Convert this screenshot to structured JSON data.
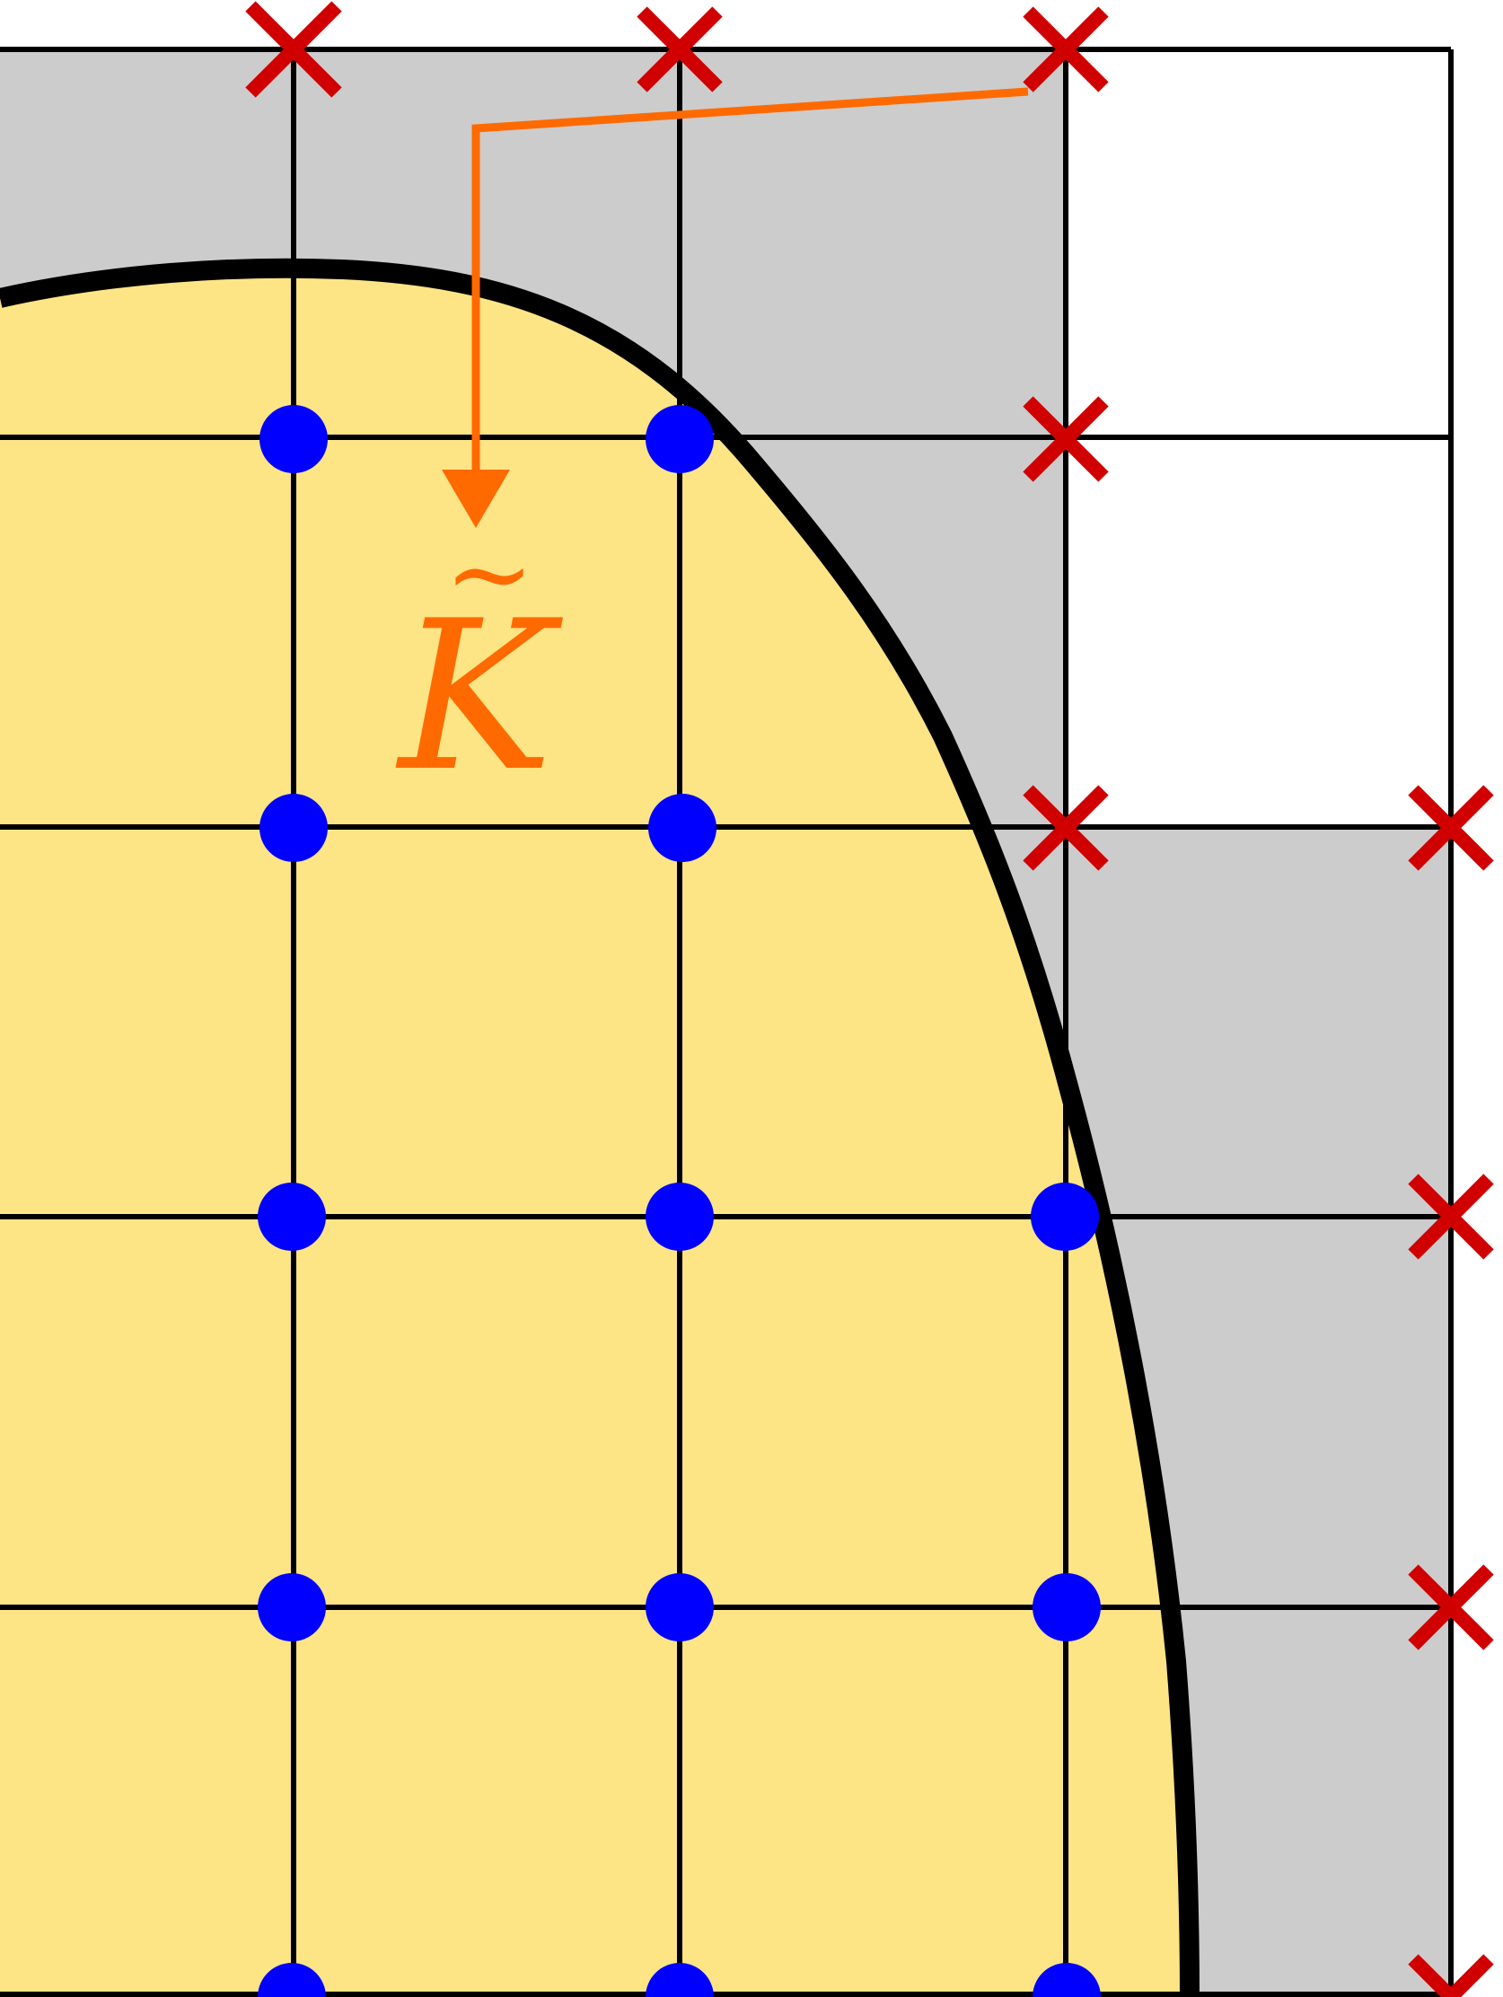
{
  "label": {
    "symbol": "K",
    "accent": "~"
  },
  "legend": {
    "interior_point": "blue-dot-icon",
    "exterior_point": "red-cross-icon"
  },
  "colors": {
    "domain_fill": "#FDE485",
    "cut_cell_fill": "#CCCCCC",
    "grid": "#000000",
    "boundary": "#000000",
    "interior_point": "#0000FF",
    "exterior_point": "#D10000",
    "annotation": "#FF6A00",
    "background": "#FFFFFF"
  }
}
